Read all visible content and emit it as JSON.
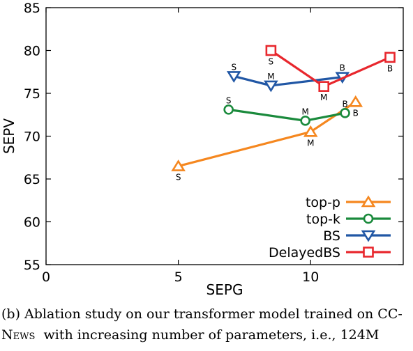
{
  "chart_data": {
    "type": "line",
    "title": "",
    "xlabel": "SEPG",
    "ylabel": "SEPV",
    "xlim": [
      0,
      13.5
    ],
    "ylim": [
      55,
      85
    ],
    "xticks": [
      0,
      5,
      10
    ],
    "yticks": [
      55,
      60,
      65,
      70,
      75,
      80,
      85
    ],
    "xtick_labels": [
      "0",
      "5",
      "10"
    ],
    "ytick_labels": [
      "55",
      "60",
      "65",
      "70",
      "75",
      "80",
      "85"
    ],
    "grid": false,
    "legend_position": "bottom-right",
    "series": [
      {
        "name": "top-p",
        "color": "#f5871f",
        "marker": "triangle-up",
        "points": [
          {
            "x": 5.0,
            "y": 66.5,
            "label": "S",
            "label_pos": "below"
          },
          {
            "x": 10.0,
            "y": 70.5,
            "label": "M",
            "label_pos": "below"
          },
          {
            "x": 11.7,
            "y": 74.0,
            "label": "B",
            "label_pos": "below"
          }
        ]
      },
      {
        "name": "top-k",
        "color": "#1a8a3c",
        "marker": "circle",
        "points": [
          {
            "x": 6.9,
            "y": 73.1,
            "label": "S",
            "label_pos": "above"
          },
          {
            "x": 9.8,
            "y": 71.8,
            "label": "M",
            "label_pos": "above"
          },
          {
            "x": 11.3,
            "y": 72.7,
            "label": "B",
            "label_pos": "above"
          }
        ]
      },
      {
        "name": "BS",
        "color": "#2157a5",
        "marker": "triangle-down",
        "points": [
          {
            "x": 7.1,
            "y": 77.0,
            "label": "S",
            "label_pos": "above"
          },
          {
            "x": 8.5,
            "y": 75.9,
            "label": "M",
            "label_pos": "above"
          },
          {
            "x": 11.2,
            "y": 76.9,
            "label": "B",
            "label_pos": "above"
          }
        ]
      },
      {
        "name": "DelayedBS",
        "color": "#e8272d",
        "marker": "square",
        "points": [
          {
            "x": 8.5,
            "y": 80.0,
            "label": "S",
            "label_pos": "below"
          },
          {
            "x": 10.5,
            "y": 75.8,
            "label": "M",
            "label_pos": "below"
          },
          {
            "x": 13.0,
            "y": 79.2,
            "label": "B",
            "label_pos": "below"
          }
        ]
      }
    ]
  },
  "caption": {
    "line1": "(b) Ablation study on our transformer model trained on CC-",
    "line2_prefix": "",
    "line2_smallcaps": "News",
    "line2_rest": "with increasing number of parameters, i.e., 124M"
  }
}
